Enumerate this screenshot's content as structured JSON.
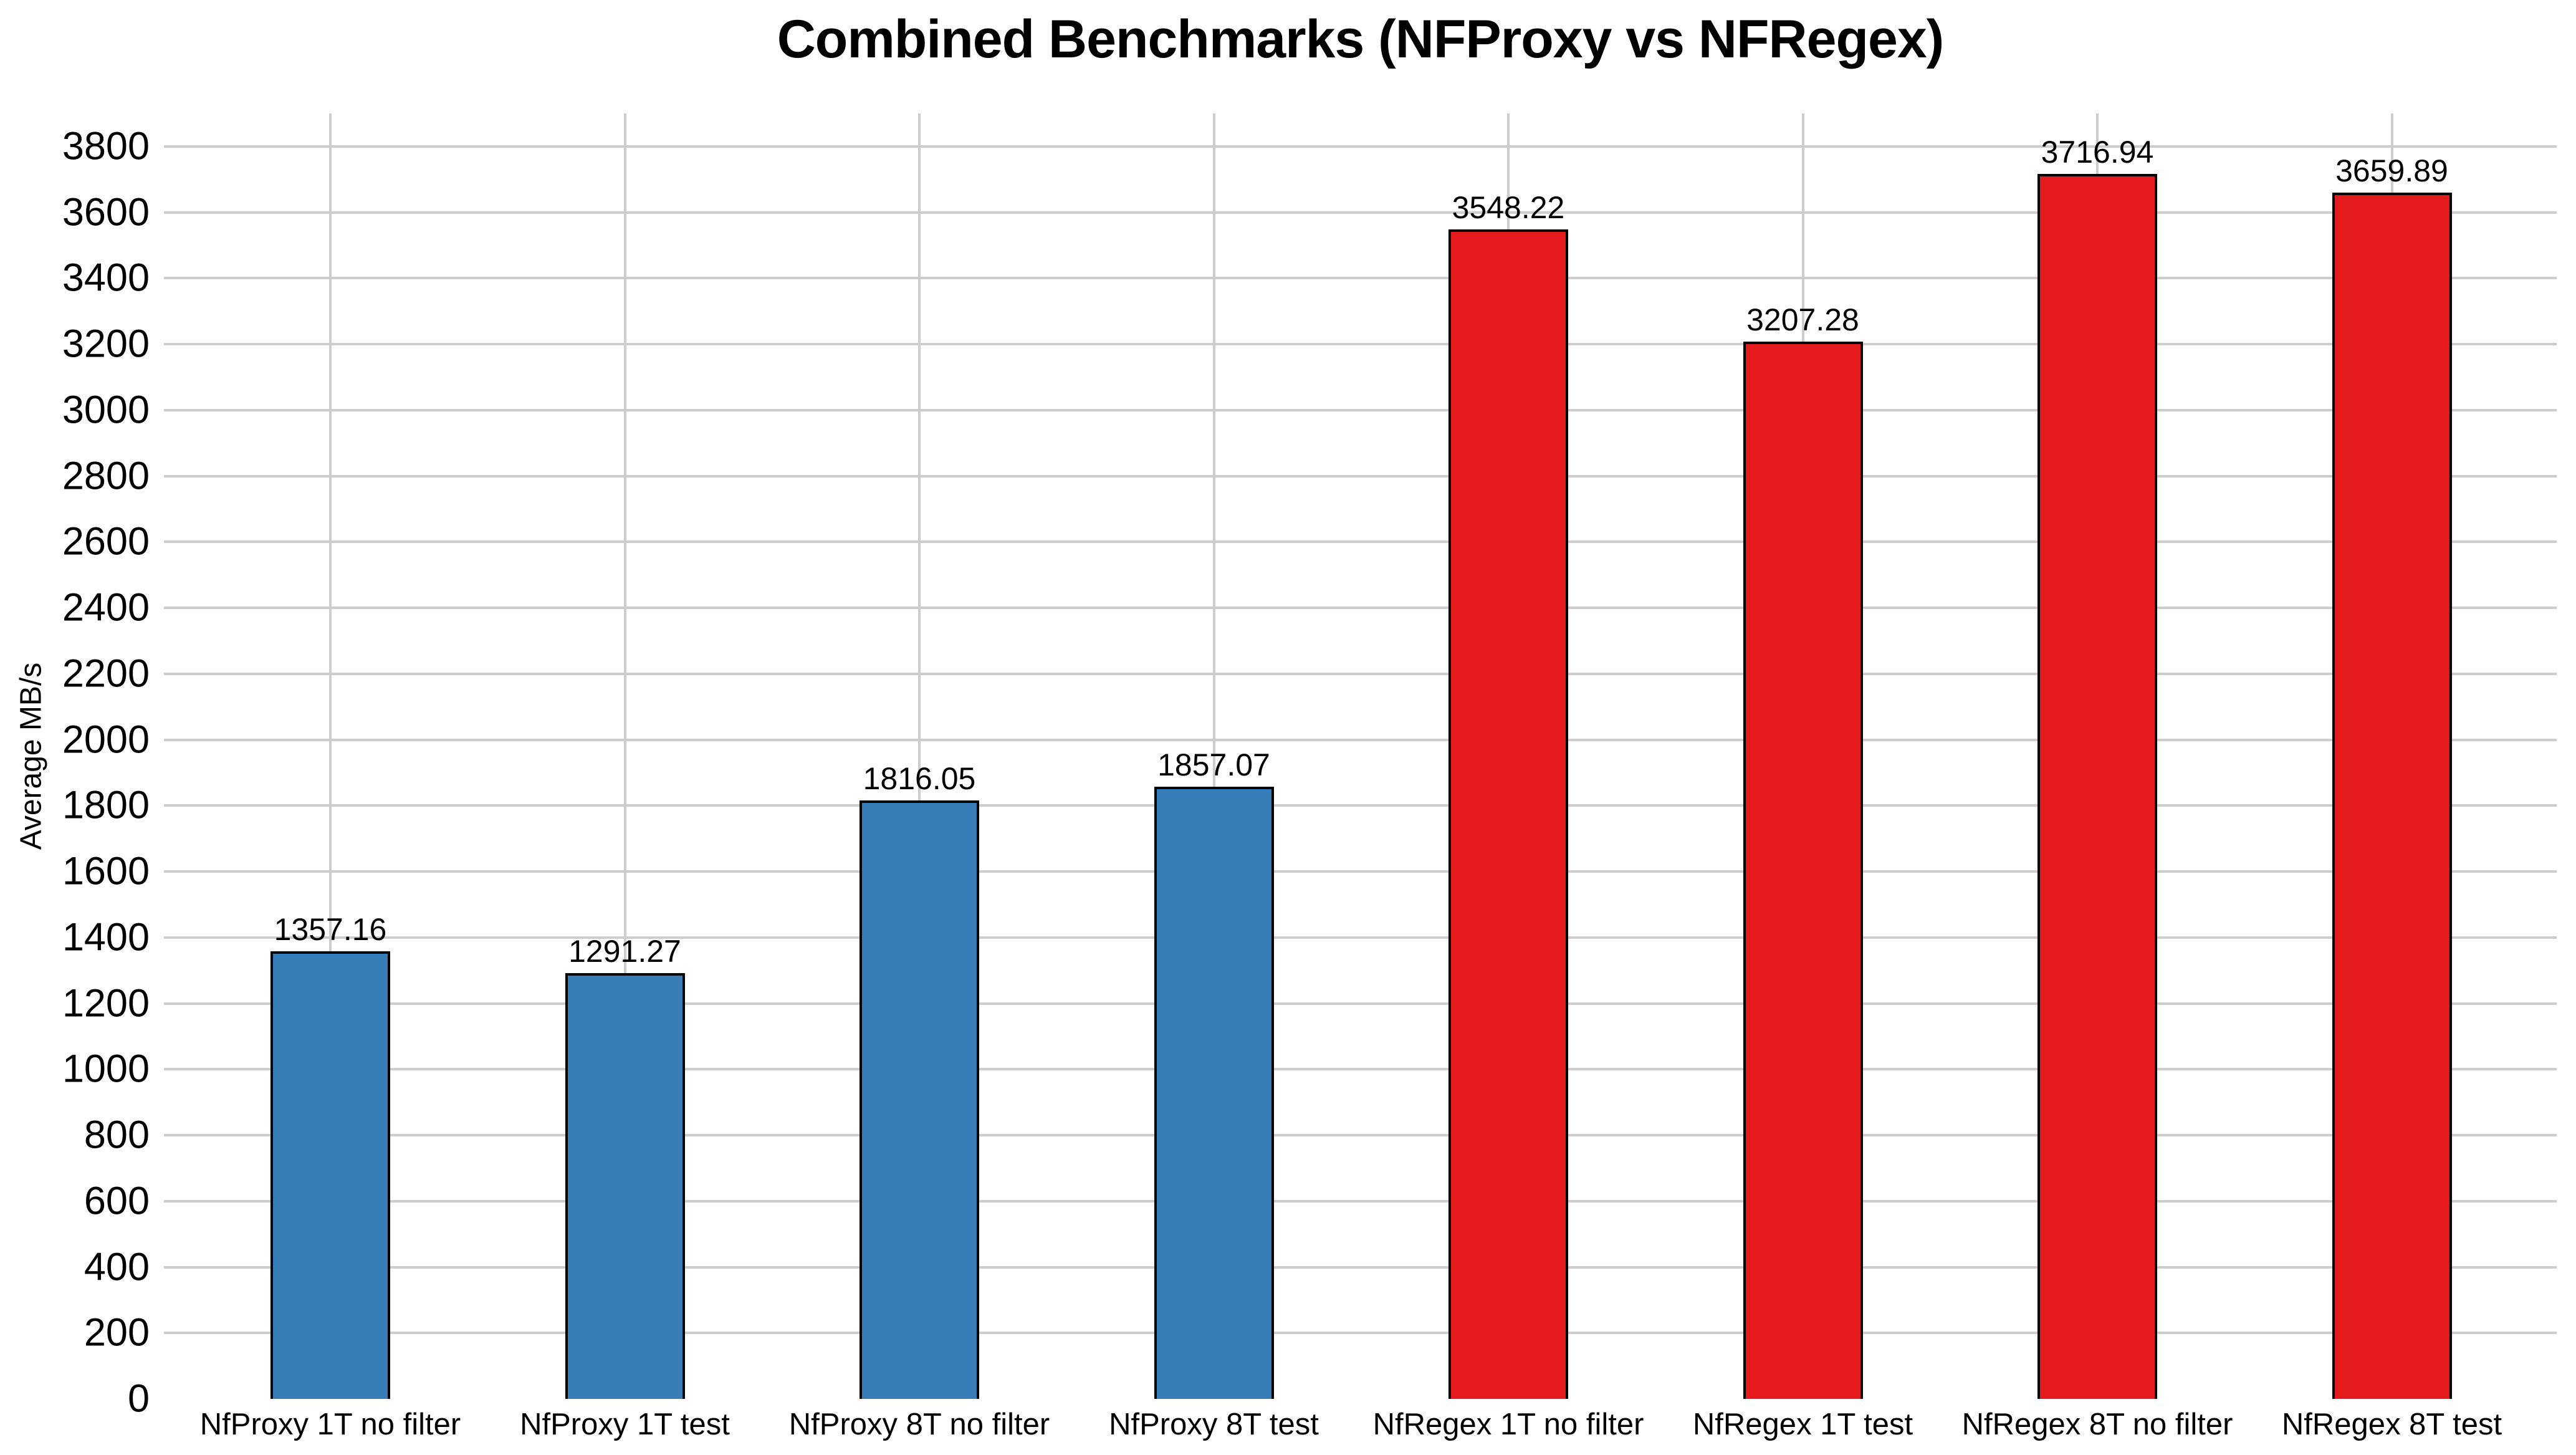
{
  "chart_data": {
    "type": "bar",
    "title": "Combined Benchmarks (NFProxy vs NFRegex)",
    "xlabel": "",
    "ylabel": "Average MB/s",
    "categories": [
      "NfProxy 1T no filter",
      "NfProxy 1T test",
      "NfProxy 8T no filter",
      "NfProxy 8T test",
      "NfRegex 1T no filter",
      "NfRegex 1T test",
      "NfRegex 8T no filter",
      "NfRegex 8T test"
    ],
    "values": [
      1357.16,
      1291.27,
      1816.05,
      1857.07,
      3548.22,
      3207.28,
      3716.94,
      3659.89
    ],
    "value_labels": [
      "1357.16",
      "1291.27",
      "1816.05",
      "1857.07",
      "3548.22",
      "3207.28",
      "3716.94",
      "3659.89"
    ],
    "bar_colors": [
      "#377eb8",
      "#377eb8",
      "#377eb8",
      "#377eb8",
      "#e41a1c",
      "#e41a1c",
      "#e41a1c",
      "#e41a1c"
    ],
    "groups": [
      {
        "name": "NFProxy",
        "color": "#377eb8",
        "category_indices": [
          0,
          1,
          2,
          3
        ]
      },
      {
        "name": "NFRegex",
        "color": "#e41a1c",
        "category_indices": [
          4,
          5,
          6,
          7
        ]
      }
    ],
    "ylim": [
      0,
      3900
    ],
    "yticks": [
      0,
      200,
      400,
      600,
      800,
      1000,
      1200,
      1400,
      1600,
      1800,
      2000,
      2200,
      2400,
      2600,
      2800,
      3000,
      3200,
      3400,
      3600,
      3800
    ],
    "grid": true,
    "legend": false,
    "colors": {
      "grid": "#cdcdcd",
      "bar_border": "#000000",
      "text": "#000000",
      "background": "#ffffff"
    }
  }
}
